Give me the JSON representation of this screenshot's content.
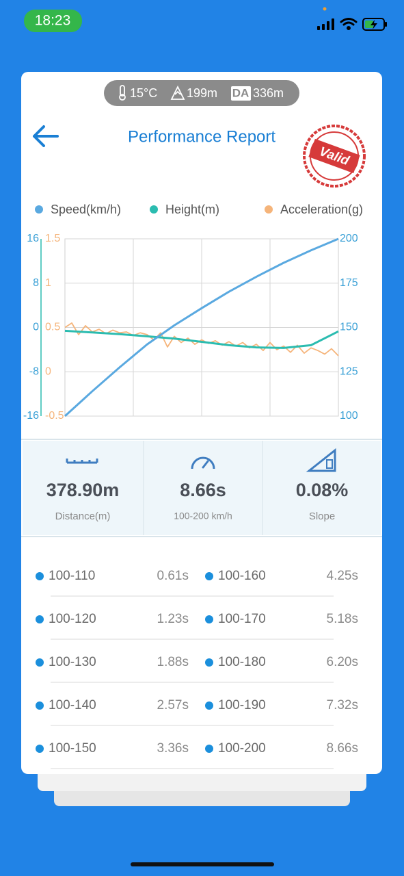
{
  "status_bar": {
    "time": "18:23"
  },
  "conditions": {
    "temperature": "15°C",
    "altitude": "199m",
    "da_badge": "DA",
    "density_altitude": "336m"
  },
  "header": {
    "title": "Performance Report",
    "stamp": "Valid"
  },
  "chart_data": {
    "type": "line",
    "series": [
      {
        "name": "Speed(km/h)",
        "color": "#5aa9e0",
        "axis": "y2",
        "values": [
          100,
          114,
          127.5,
          140.4,
          151.2,
          160.9,
          170.2,
          178.6,
          186.5,
          193.5,
          200
        ]
      },
      {
        "name": "Height(m)",
        "color": "#2bbcb0",
        "values": [
          -0.6,
          -0.9,
          -1.2,
          -1.6,
          -2.0,
          -2.6,
          -3.2,
          -3.6,
          -3.7,
          -3.2,
          -0.7
        ]
      },
      {
        "name": "Acceleration(g)",
        "color": "#f5b47a",
        "axis": "y3",
        "values": [
          0.5,
          0.55,
          0.42,
          0.52,
          0.45,
          0.48,
          0.43,
          0.47,
          0.44,
          0.45,
          0.41,
          0.44,
          0.42,
          0.36,
          0.44,
          0.28,
          0.4,
          0.33,
          0.38,
          0.31,
          0.36,
          0.32,
          0.35,
          0.3,
          0.34,
          0.29,
          0.33,
          0.27,
          0.31,
          0.24,
          0.33,
          0.25,
          0.29,
          0.22,
          0.3,
          0.21,
          0.27,
          0.24,
          0.2,
          0.26,
          0.18
        ]
      }
    ],
    "ylim": [
      -16,
      16
    ],
    "yticks": [
      16,
      8,
      0,
      -8,
      -16
    ],
    "y2lim": [
      100,
      200
    ],
    "y2ticks": [
      200,
      175,
      150,
      125,
      100
    ],
    "y3lim": [
      -0.5,
      1.5
    ],
    "y3ticks": [
      1.5,
      1,
      0.5,
      0,
      -0.5
    ],
    "grid": true
  },
  "stats": [
    {
      "value": "378.90m",
      "label": "Distance(m)"
    },
    {
      "value": "8.66s",
      "label": "100-200 km/h"
    },
    {
      "value": "0.08%",
      "label": "Slope"
    }
  ],
  "splits": [
    {
      "range": "100-110",
      "time": "0.61s"
    },
    {
      "range": "100-120",
      "time": "1.23s"
    },
    {
      "range": "100-130",
      "time": "1.88s"
    },
    {
      "range": "100-140",
      "time": "2.57s"
    },
    {
      "range": "100-150",
      "time": "3.36s"
    },
    {
      "range": "100-160",
      "time": "4.25s"
    },
    {
      "range": "100-170",
      "time": "5.18s"
    },
    {
      "range": "100-180",
      "time": "6.20s"
    },
    {
      "range": "100-190",
      "time": "7.32s"
    },
    {
      "range": "100-200",
      "time": "8.66s"
    }
  ]
}
